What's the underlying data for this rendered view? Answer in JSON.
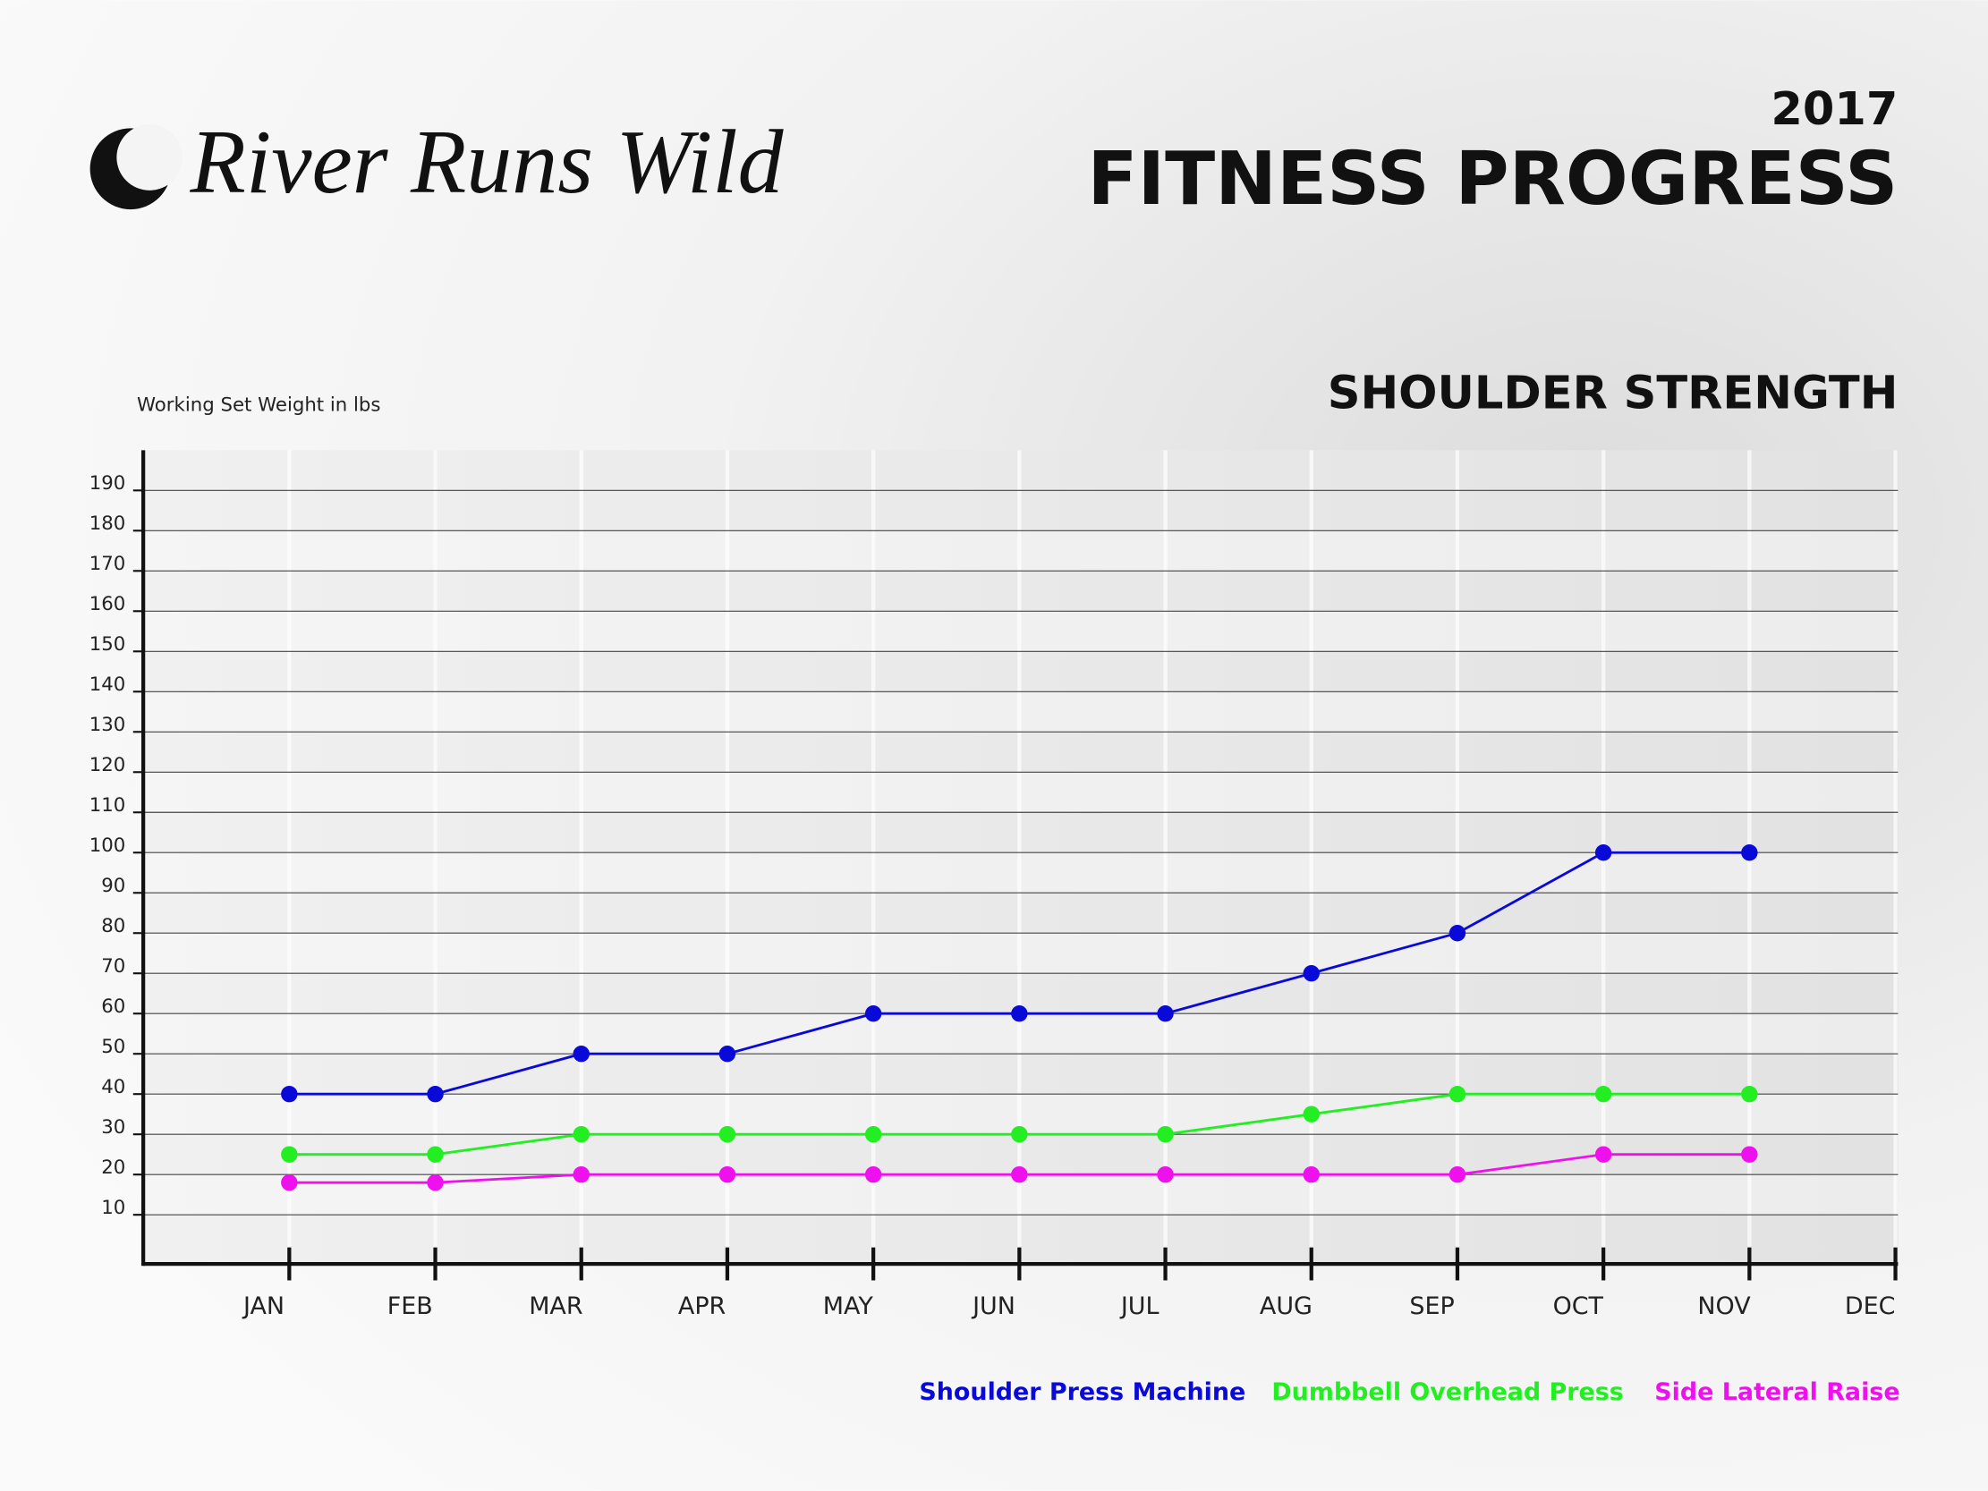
{
  "brand": "River Runs Wild",
  "chart_data": {
    "type": "line",
    "year": "2017",
    "title": "FITNESS PROGRESS",
    "subtitle": "SHOULDER STRENGTH",
    "y_label": "Working Set Weight in lbs",
    "categories": [
      "JAN",
      "FEB",
      "MAR",
      "APR",
      "MAY",
      "JUN",
      "JUL",
      "AUG",
      "SEP",
      "OCT",
      "NOV",
      "DEC"
    ],
    "series": [
      {
        "name": "Shoulder Press Machine",
        "color": "#0a0ad8",
        "values": [
          40,
          40,
          50,
          50,
          60,
          60,
          60,
          70,
          80,
          100,
          100,
          null
        ]
      },
      {
        "name": "Dumbbell Overhead Press",
        "color": "#22ee22",
        "values": [
          25,
          25,
          30,
          30,
          30,
          30,
          30,
          35,
          40,
          40,
          40,
          null
        ]
      },
      {
        "name": "Side Lateral Raise",
        "color": "#ee11ee",
        "values": [
          18,
          18,
          20,
          20,
          20,
          20,
          20,
          20,
          20,
          25,
          25,
          null
        ]
      }
    ],
    "ylim": [
      0,
      200
    ],
    "yticks": [
      10,
      20,
      30,
      40,
      50,
      60,
      70,
      80,
      90,
      100,
      110,
      120,
      130,
      140,
      150,
      160,
      170,
      180,
      190
    ],
    "grid": true,
    "legend": "bottom-right"
  }
}
